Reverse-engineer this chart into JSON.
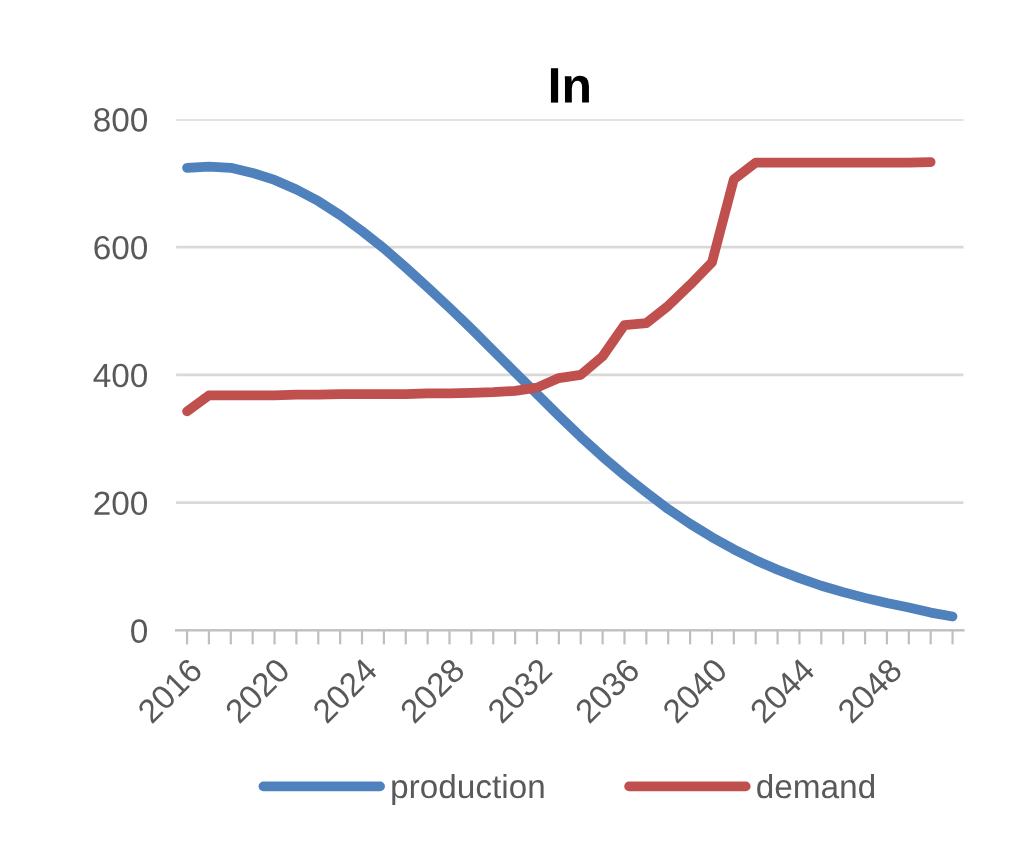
{
  "chart_data": {
    "type": "line",
    "title": "In",
    "categories": [
      "2016",
      null,
      null,
      null,
      "2020",
      null,
      null,
      null,
      "2024",
      null,
      null,
      null,
      "2028",
      null,
      null,
      null,
      "2032",
      null,
      null,
      null,
      "2036",
      null,
      null,
      null,
      "2040",
      null,
      null,
      null,
      "2044",
      null,
      null,
      null,
      "2048",
      null,
      null,
      null
    ],
    "series": [
      {
        "name": "production",
        "color": "#4f81bd",
        "values": [
          724,
          726,
          724,
          716,
          705,
          690,
          672,
          650,
          625,
          598,
          568,
          537,
          505,
          472,
          438,
          404,
          370,
          336,
          303,
          272,
          243,
          216,
          190,
          167,
          146,
          127,
          110,
          95,
          82,
          70,
          60,
          51,
          43,
          36,
          28,
          22
        ]
      },
      {
        "name": "demand",
        "color": "#c0504d",
        "values": [
          343,
          368,
          368,
          368,
          368,
          369,
          369,
          370,
          370,
          370,
          370,
          371,
          371,
          372,
          373,
          375,
          380,
          395,
          400,
          429,
          478,
          481,
          508,
          541,
          576,
          706,
          732,
          732,
          732,
          732,
          732,
          732,
          732,
          732,
          733,
          null
        ]
      }
    ],
    "ylim": [
      0,
      800
    ],
    "yticks": [
      0,
      200,
      400,
      600,
      800
    ],
    "grid": "y",
    "legend": "bottom",
    "marker": "none",
    "line_style": "solid"
  }
}
